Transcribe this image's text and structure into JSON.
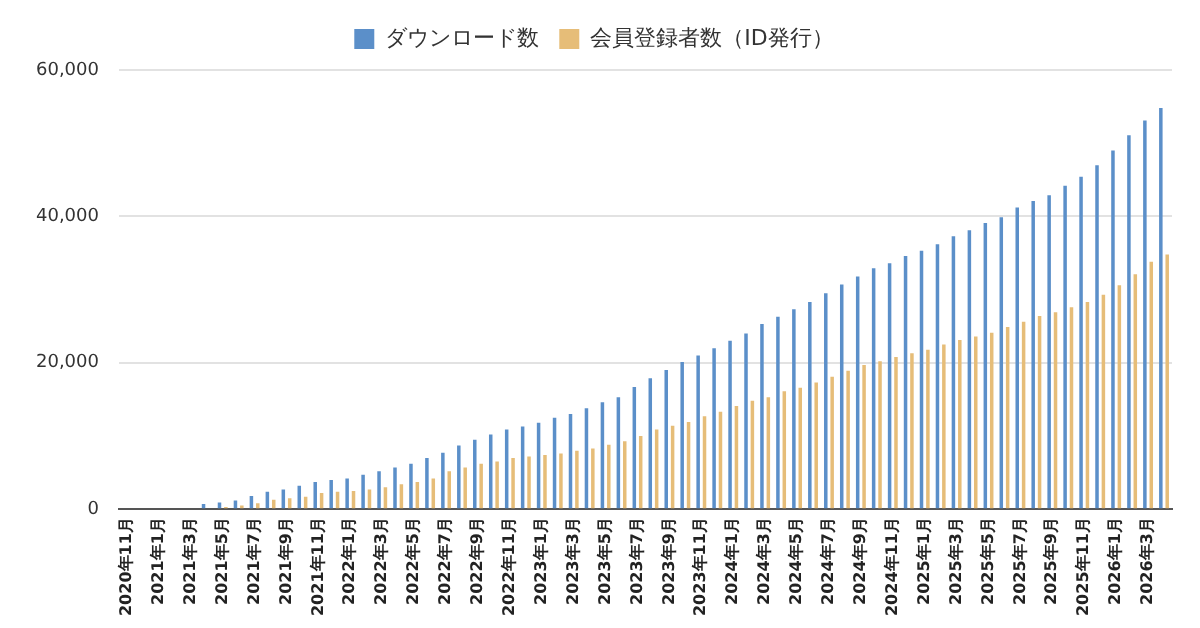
{
  "chart_data": {
    "type": "bar",
    "categories": [
      "2020年11月",
      null,
      "2021年1月",
      null,
      "2021年3月",
      null,
      "2021年5月",
      null,
      "2021年7月",
      null,
      "2021年9月",
      null,
      "2021年11月",
      null,
      "2022年1月",
      null,
      "2022年3月",
      null,
      "2022年5月",
      null,
      "2022年7月",
      null,
      "2022年9月",
      null,
      "2022年11月",
      null,
      "2023年1月",
      null,
      "2023年3月",
      null,
      "2023年5月",
      null,
      "2023年7月",
      null,
      "2023年9月",
      null,
      "2023年11月",
      null,
      "2024年1月",
      null,
      "2024年3月",
      null,
      "2024年5月",
      null,
      "2024年7月",
      null,
      "2024年9月",
      null,
      "2024年11月",
      null,
      "2025年1月",
      null,
      "2025年3月",
      null,
      "2025年5月",
      null,
      "2025年7月",
      null,
      "2025年9月",
      null,
      "2025年11月",
      null,
      "2026年1月",
      null,
      "2026年3月",
      null
    ],
    "series": [
      {
        "name": "ダウンロード数",
        "color": "#5b8fc9",
        "values": [
          0,
          0,
          0,
          0,
          0,
          700,
          900,
          1200,
          1800,
          2400,
          2700,
          3200,
          3700,
          4000,
          4200,
          4700,
          5200,
          5700,
          6200,
          7000,
          7700,
          8700,
          9500,
          10200,
          10900,
          11300,
          11800,
          12500,
          13000,
          13800,
          14600,
          15300,
          16700,
          17900,
          19000,
          20100,
          21000,
          22000,
          23000,
          24000,
          25300,
          26300,
          27300,
          28300,
          29500,
          30700,
          31800,
          32900,
          33600,
          34600,
          35300,
          36200,
          37300,
          38100,
          39100,
          39900,
          41200,
          42100,
          42900,
          44200,
          45400,
          47000,
          49000,
          51100,
          53100,
          54800
        ]
      },
      {
        "name": "会員登録者数（ID発行）",
        "color": "#e6bd78",
        "values": [
          0,
          0,
          0,
          0,
          0,
          0,
          300,
          500,
          800,
          1300,
          1500,
          1700,
          2200,
          2400,
          2500,
          2700,
          3000,
          3400,
          3700,
          4200,
          5200,
          5700,
          6200,
          6500,
          7000,
          7200,
          7400,
          7600,
          8000,
          8300,
          8800,
          9300,
          10000,
          10900,
          11400,
          11900,
          12700,
          13300,
          14100,
          14800,
          15300,
          16100,
          16600,
          17300,
          18100,
          18900,
          19700,
          20200,
          20800,
          21300,
          21800,
          22500,
          23100,
          23600,
          24100,
          24900,
          25600,
          26400,
          26900,
          27600,
          28300,
          29300,
          30600,
          32100,
          33800,
          34800
        ]
      }
    ],
    "ylim": [
      0,
      60000
    ],
    "yticks": [
      0,
      {
        "value": 20000,
        "label": "20,000"
      },
      {
        "value": 40000,
        "label": "40,000"
      },
      {
        "value": 60000,
        "label": "60,000"
      }
    ],
    "grid": "y",
    "legend": "top"
  }
}
